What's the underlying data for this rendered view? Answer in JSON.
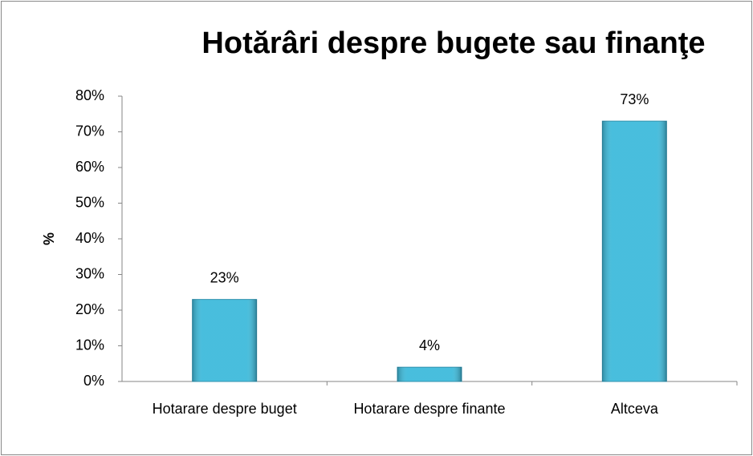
{
  "chart_data": {
    "type": "bar",
    "title": "Hotărâri despre bugete sau finanţe",
    "y_label": "%",
    "categories": [
      "Hotarare despre buget",
      "Hotarare despre finante",
      "Altceva"
    ],
    "values": [
      23,
      4,
      73
    ],
    "value_labels": [
      "23%",
      "4%",
      "73%"
    ],
    "color": "#3fbbdb",
    "ylim": [
      0,
      80
    ],
    "yticks": [
      {
        "value": 0,
        "label": "0%"
      },
      {
        "value": 10,
        "label": "10%"
      },
      {
        "value": 20,
        "label": "20%"
      },
      {
        "value": 30,
        "label": "30%"
      },
      {
        "value": 40,
        "label": "40%"
      },
      {
        "value": 50,
        "label": "50%"
      },
      {
        "value": 60,
        "label": "60%"
      },
      {
        "value": 70,
        "label": "70%"
      },
      {
        "value": 80,
        "label": "80%"
      }
    ],
    "grid": false
  }
}
